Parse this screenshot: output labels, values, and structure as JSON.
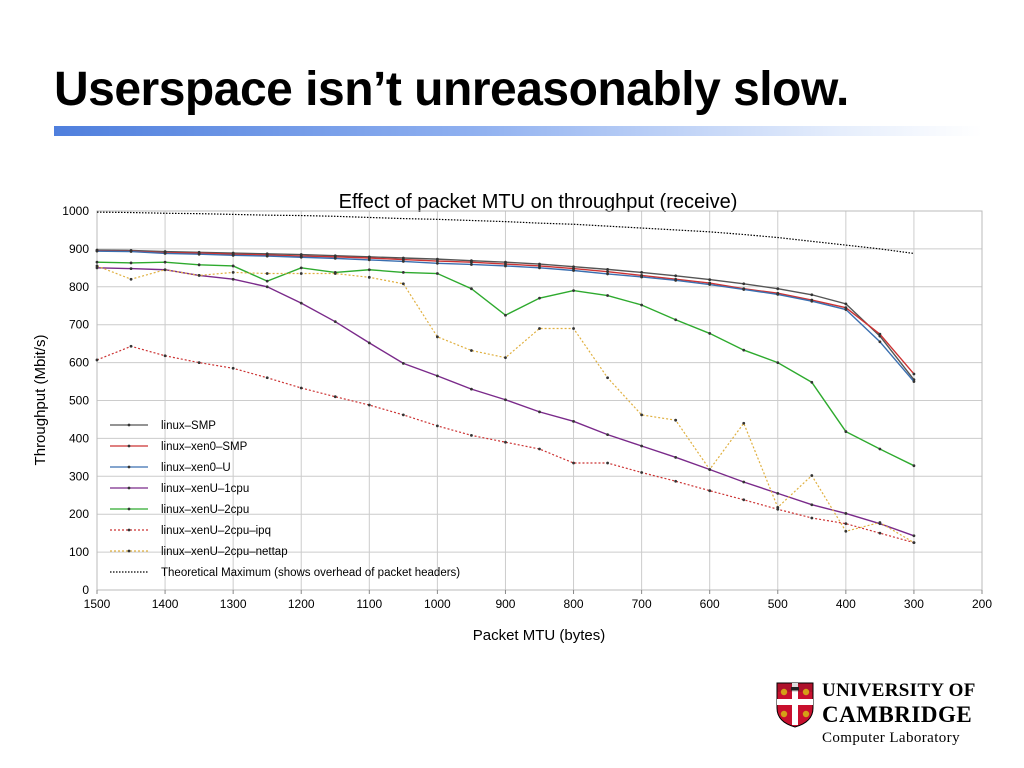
{
  "slide": {
    "title": "Userspace isn’t unreasonably slow."
  },
  "logo": {
    "line1": "UNIVERSITY OF",
    "line2": "CAMBRIDGE",
    "line3": "Computer Laboratory",
    "crest_icon": "cambridge-crest-icon",
    "crest_colors": {
      "shield": "#c8102e",
      "cross": "#ffffff",
      "lions": "#d4a017"
    }
  },
  "chart_data": {
    "type": "line",
    "title": "Effect of packet MTU on throughput (receive)",
    "xlabel": "Packet MTU (bytes)",
    "ylabel": "Throughput (Mbit/s)",
    "xlim": [
      1500,
      200
    ],
    "ylim": [
      0,
      1000
    ],
    "x_reversed": true,
    "xticks": [
      1500,
      1400,
      1300,
      1200,
      1100,
      1000,
      900,
      800,
      700,
      600,
      500,
      400,
      300,
      200
    ],
    "yticks": [
      0,
      100,
      200,
      300,
      400,
      500,
      600,
      700,
      800,
      900,
      1000
    ],
    "grid": true,
    "legend_position": "bottom-left",
    "x": [
      1500,
      1450,
      1400,
      1350,
      1300,
      1250,
      1200,
      1150,
      1100,
      1050,
      1000,
      950,
      900,
      850,
      800,
      750,
      700,
      650,
      600,
      550,
      500,
      450,
      400,
      350,
      300
    ],
    "series": [
      {
        "name": "linux–SMP",
        "color": "#555555",
        "dash": "solid",
        "values": [
          897,
          896,
          893,
          891,
          889,
          887,
          885,
          882,
          879,
          876,
          873,
          869,
          865,
          860,
          853,
          846,
          838,
          829,
          819,
          808,
          795,
          779,
          755,
          670,
          555
        ]
      },
      {
        "name": "linux–xen0–SMP",
        "color": "#cc3333",
        "dash": "solid",
        "values": [
          895,
          894,
          890,
          889,
          886,
          884,
          881,
          879,
          876,
          872,
          868,
          865,
          860,
          855,
          848,
          840,
          830,
          820,
          810,
          795,
          783,
          765,
          745,
          675,
          570
        ]
      },
      {
        "name": "linux–xen0–U",
        "color": "#3a6fb0",
        "dash": "solid",
        "values": [
          894,
          893,
          888,
          886,
          883,
          881,
          878,
          875,
          871,
          867,
          862,
          859,
          855,
          850,
          843,
          834,
          826,
          817,
          806,
          793,
          780,
          762,
          740,
          655,
          550
        ]
      },
      {
        "name": "linux–xenU–1cpu",
        "color": "#7a2a8a",
        "dash": "solid",
        "values": [
          850,
          848,
          845,
          830,
          820,
          800,
          757,
          708,
          652,
          598,
          565,
          530,
          502,
          470,
          445,
          410,
          380,
          350,
          318,
          285,
          255,
          225,
          202,
          175,
          143
        ]
      },
      {
        "name": "linux–xenU–2cpu",
        "color": "#2eaa2e",
        "dash": "solid",
        "values": [
          865,
          863,
          865,
          858,
          855,
          815,
          850,
          838,
          845,
          838,
          835,
          795,
          725,
          770,
          790,
          777,
          752,
          713,
          677,
          633,
          600,
          548,
          418,
          372,
          328
        ]
      },
      {
        "name": "linux–xenU–2cpu–ipq",
        "color": "#cc3333",
        "dash": "dotted",
        "values": [
          607,
          643,
          618,
          600,
          585,
          560,
          533,
          510,
          488,
          462,
          433,
          408,
          390,
          372,
          335,
          335,
          310,
          287,
          262,
          238,
          213,
          190,
          175,
          150,
          125
        ]
      },
      {
        "name": "linux–xenU–2cpu–nettap",
        "color": "#e0b040",
        "dash": "dotted",
        "values": [
          855,
          820,
          845,
          830,
          838,
          835,
          835,
          835,
          825,
          808,
          668,
          632,
          613,
          690,
          690,
          560,
          462,
          448,
          318,
          440,
          218,
          302,
          155,
          178,
          125
        ]
      },
      {
        "name": "Theoretical Maximum (shows overhead of packet headers)",
        "color": "#000000",
        "dash": "dense",
        "values": [
          997,
          996,
          994,
          993,
          991,
          989,
          988,
          986,
          983,
          980,
          978,
          975,
          972,
          968,
          965,
          960,
          955,
          950,
          945,
          938,
          930,
          920,
          910,
          900,
          888
        ]
      }
    ]
  }
}
